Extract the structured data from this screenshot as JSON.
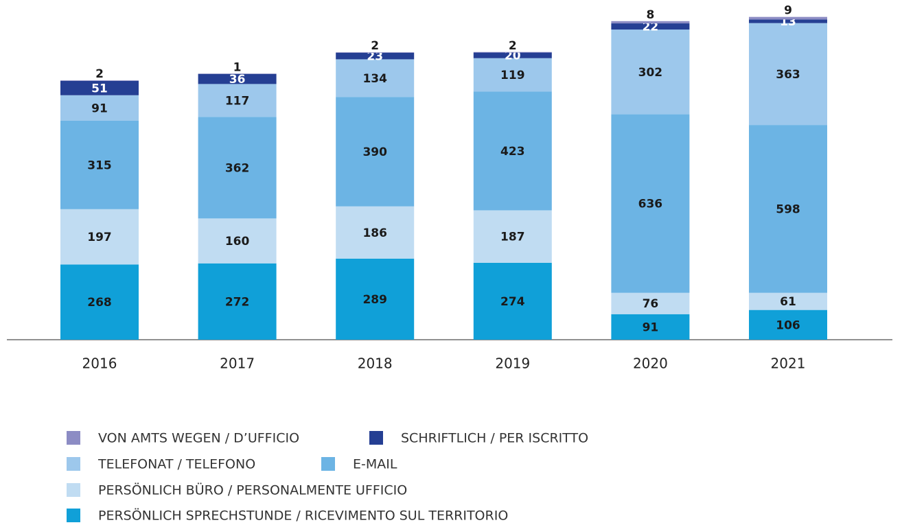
{
  "chart_data": {
    "type": "stacked_bar",
    "categories": [
      "2016",
      "2017",
      "2018",
      "2019",
      "2020",
      "2021"
    ],
    "series": [
      {
        "name": "VON AMTS WEGEN / D’UFFICIO",
        "color": "#8c8cc4",
        "values": [
          2,
          1,
          2,
          2,
          8,
          9
        ]
      },
      {
        "name": "SCHRIFTLICH / PER ISCRITTO",
        "color": "#253f93",
        "values": [
          51,
          36,
          23,
          20,
          22,
          13
        ]
      },
      {
        "name": "TELEFONAT / TELEFONO",
        "color": "#9dc8ec",
        "values": [
          91,
          117,
          134,
          119,
          302,
          363
        ]
      },
      {
        "name": "E-MAIL",
        "color": "#6cb4e4",
        "values": [
          315,
          362,
          390,
          423,
          636,
          598
        ]
      },
      {
        "name": "PERSÖNLICH BÜRO / PERSONALMENTE UFFICIO",
        "color": "#c0dcf2",
        "values": [
          197,
          160,
          186,
          187,
          76,
          61
        ]
      },
      {
        "name": "PERSÖNLICH SPRECHSTUNDE / RICEVIMENTO SUL TERRITORIO",
        "color": "#10a0d8",
        "values": [
          268,
          272,
          289,
          274,
          91,
          106
        ]
      }
    ]
  }
}
